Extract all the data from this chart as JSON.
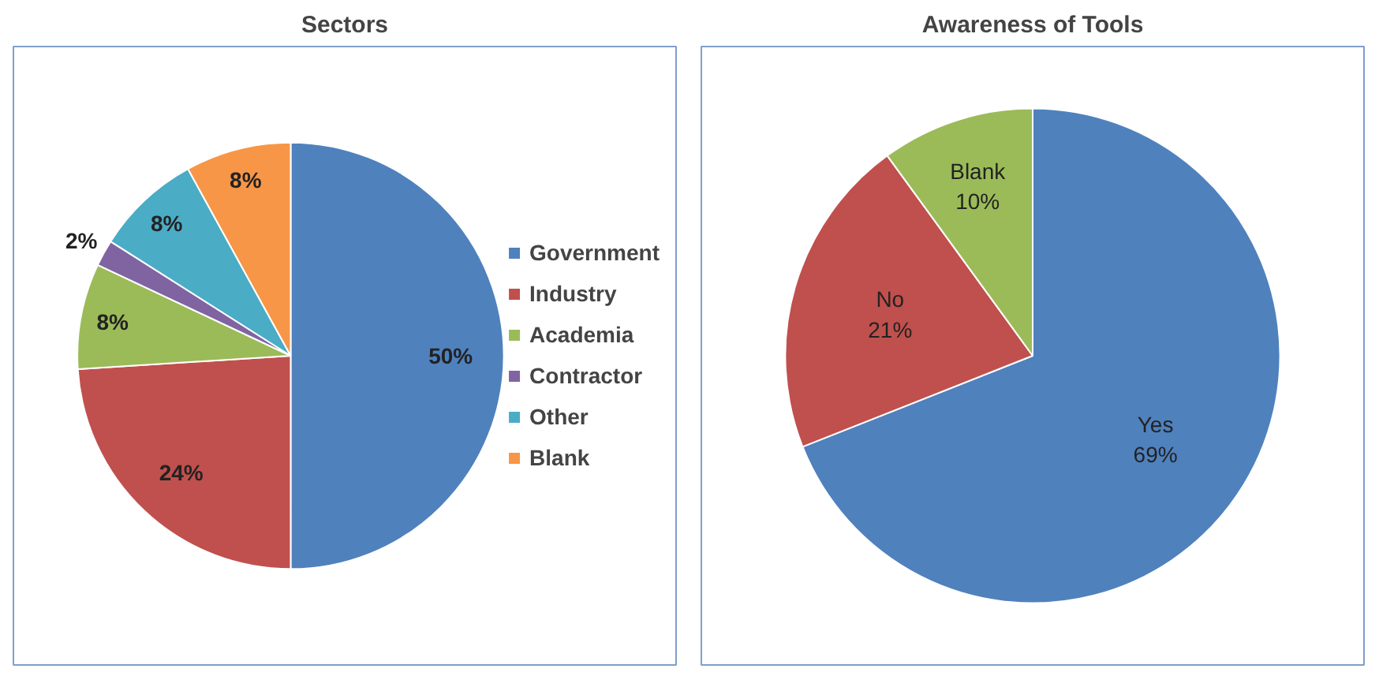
{
  "chart_data": [
    {
      "type": "pie",
      "title": "Sectors",
      "categories": [
        "Government",
        "Industry",
        "Academia",
        "Contractor",
        "Other",
        "Blank"
      ],
      "values": [
        50,
        24,
        8,
        2,
        8,
        8
      ],
      "colors": [
        "#4f81bd",
        "#c0504d",
        "#9bbb59",
        "#8064a2",
        "#4bacc6",
        "#f79646"
      ],
      "value_labels": [
        "50%",
        "24%",
        "8%",
        "2%",
        "8%",
        "8%"
      ],
      "legend": "right"
    },
    {
      "type": "pie",
      "title": "Awareness of Tools",
      "categories": [
        "Yes",
        "No",
        "Blank"
      ],
      "values": [
        69,
        21,
        10
      ],
      "colors": [
        "#4f81bd",
        "#c0504d",
        "#9bbb59"
      ],
      "value_labels": [
        "69%",
        "21%",
        "10%"
      ],
      "legend": false
    }
  ]
}
